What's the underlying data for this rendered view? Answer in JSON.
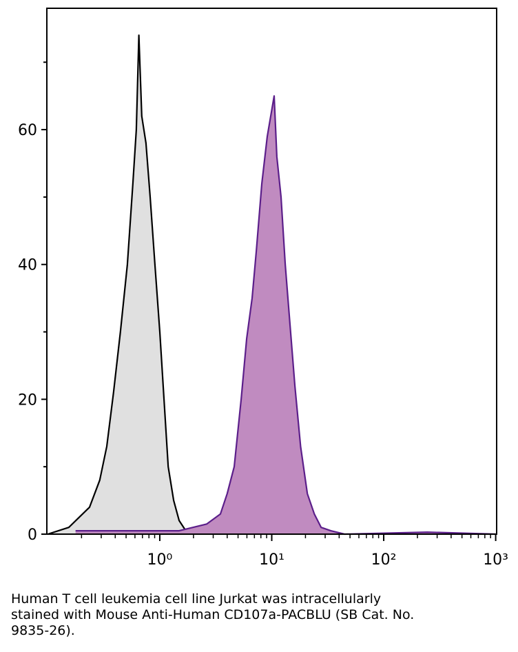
{
  "chart_data": {
    "type": "histogram-overlay",
    "xscale": "log",
    "xlim": [
      0.098,
      1020
    ],
    "ylim": [
      0,
      78
    ],
    "yticks": [
      0,
      20,
      40,
      60
    ],
    "yminor_ticks": [
      10,
      30,
      50,
      70
    ],
    "xticks": [
      {
        "value": 1,
        "label": "10⁰"
      },
      {
        "value": 10,
        "label": "10¹"
      },
      {
        "value": 100,
        "label": "10²"
      },
      {
        "value": 1000,
        "label": "10³"
      }
    ],
    "series": [
      {
        "color": "#000000",
        "fill": "#e0e0e0",
        "x": [
          0.1,
          0.154,
          0.236,
          0.291,
          0.336,
          0.386,
          0.445,
          0.513,
          0.575,
          0.617,
          0.65,
          0.69,
          0.753,
          0.82,
          0.905,
          1.0,
          1.09,
          1.19,
          1.33,
          1.49,
          1.71,
          2.27,
          4.0
        ],
        "values": [
          0,
          1,
          4,
          8,
          13,
          21,
          30,
          40,
          52,
          60,
          74,
          62,
          58,
          50,
          40,
          30,
          20,
          10,
          5,
          2,
          0.5,
          0.3,
          0
        ]
      },
      {
        "color": "#5b1e8a",
        "fill": "#c08bc0",
        "x": [
          0.177,
          0.65,
          1.49,
          2.63,
          3.48,
          4.0,
          4.62,
          5.33,
          5.97,
          6.68,
          7.28,
          8.15,
          9.12,
          10.5,
          11.1,
          12.1,
          13.2,
          14.4,
          16.1,
          18.1,
          20.8,
          24.0,
          27.6,
          33.7,
          44.7,
          245,
          1000
        ],
        "values": [
          0.5,
          0.5,
          0.5,
          1.5,
          3,
          6,
          10,
          20,
          29,
          35,
          42,
          52,
          59,
          65,
          56,
          50,
          40,
          32,
          22,
          13,
          6,
          3,
          1,
          0.5,
          0,
          0.3,
          0
        ]
      }
    ]
  },
  "caption": [
    "Human T cell leukemia cell line Jurkat was intracellularly",
    "stained with Mouse Anti-Human CD107a-PACBLU (SB Cat. No.",
    "9835-26)."
  ]
}
